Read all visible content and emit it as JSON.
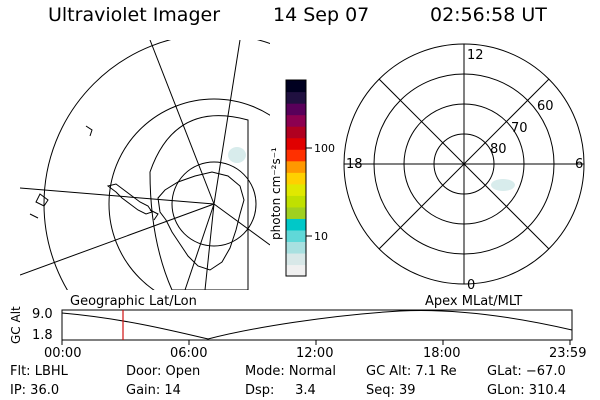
{
  "header": {
    "title": "Ultraviolet Imager",
    "date": "14 Sep 07",
    "time": "02:56:58 UT"
  },
  "colorbar": {
    "unit": "photon cm⁻²s⁻¹",
    "tick_100": "100",
    "tick_10": "10",
    "colors": [
      "#f0f0f0",
      "#d8e8e8",
      "#a8e0e0",
      "#60d8d8",
      "#00c8c8",
      "#a0d020",
      "#c0e000",
      "#e0e800",
      "#ffd000",
      "#ff9800",
      "#ff3000",
      "#e00000",
      "#b00020",
      "#8c0050",
      "#58005a",
      "#201040",
      "#000020"
    ]
  },
  "mlt_plot": {
    "hour_12": "12",
    "hour_18": "18",
    "hour_6": "6",
    "hour_0": "0",
    "lat_60": "60",
    "lat_70": "70",
    "lat_80": "80"
  },
  "orbit": {
    "left_label": "Geographic Lat/Lon",
    "right_label": "Apex MLat/MLT",
    "axis_title": "GC Alt",
    "y_max": "9.0",
    "y_min": "1.8",
    "x_ticks": [
      "00:00",
      "06:00",
      "12:00",
      "18:00",
      "23:59"
    ],
    "marker_time": "02:56:58"
  },
  "footer": {
    "flt": "Flt: LBHL",
    "ip": "IP: 36.0",
    "door": "Door: Open",
    "gain": "Gain: 14",
    "mode": "Mode: Normal",
    "dsp": "Dsp:     3.4",
    "gcalt": "GC Alt: 7.1 Re",
    "seq": "Seq: 39",
    "glat": "GLat: −67.0",
    "glon": "GLon: 310.4"
  },
  "colors": {
    "marker": "#d01010",
    "aurora": "#d8ecec"
  }
}
